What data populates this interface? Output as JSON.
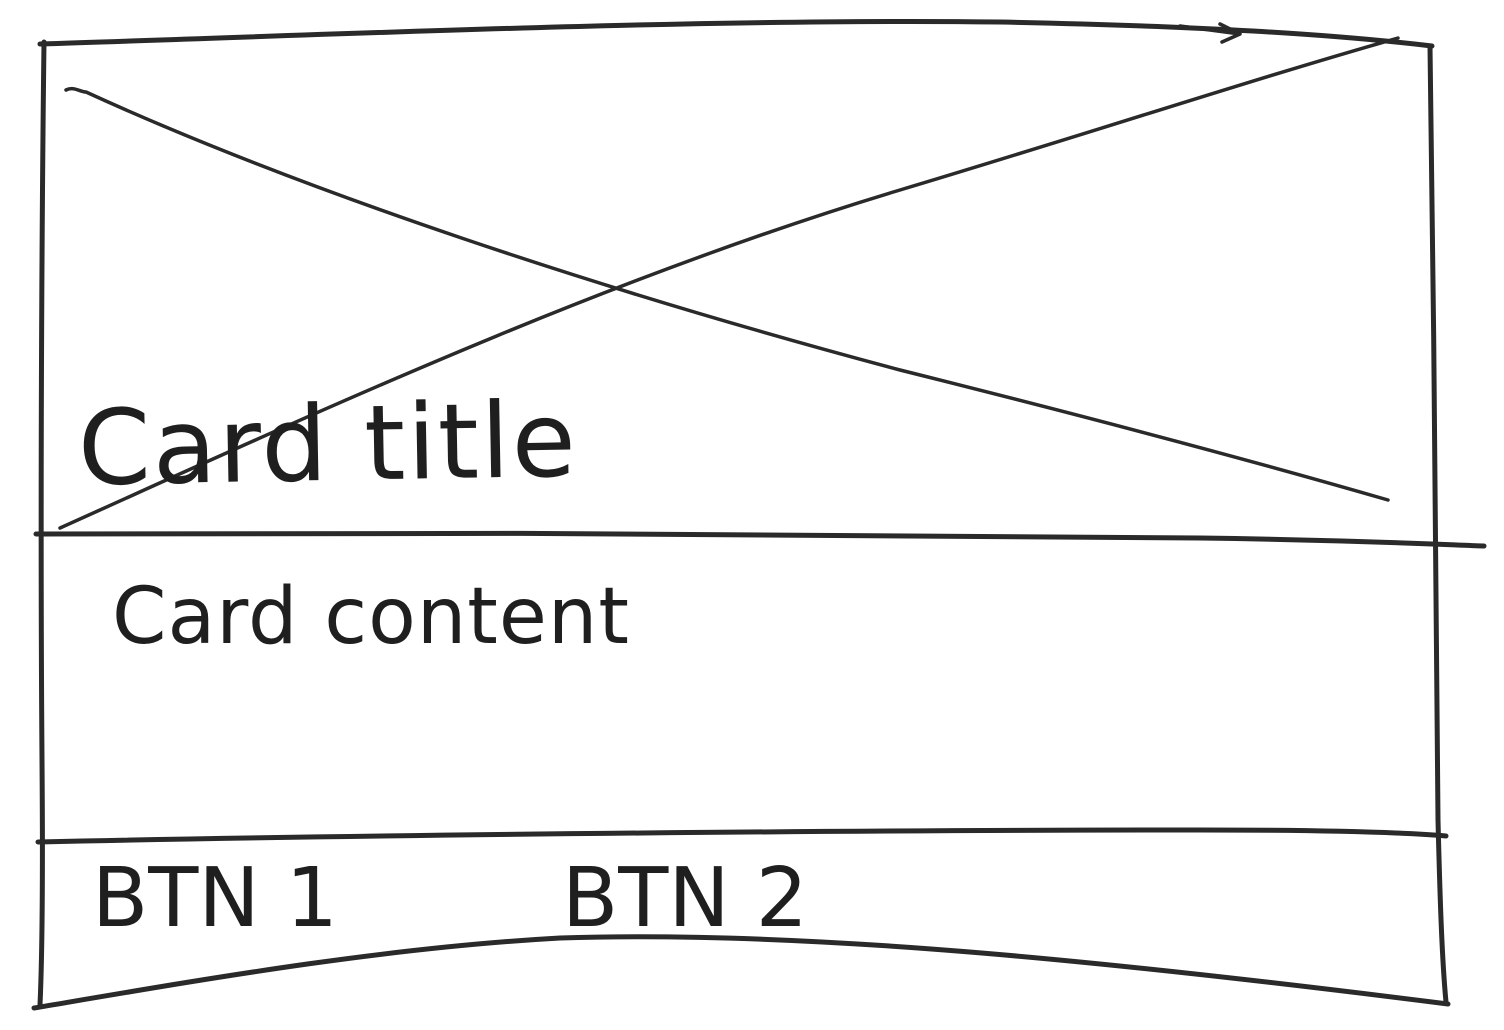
{
  "card": {
    "title": "Card title",
    "content": "Card content"
  },
  "buttons": {
    "btn1": "BTN 1",
    "btn2": "BTN 2"
  },
  "image_placeholder": {
    "icon": "x-placeholder-icon"
  },
  "colors": {
    "ink": "#2a2a2a",
    "paper": "#ffffff"
  }
}
